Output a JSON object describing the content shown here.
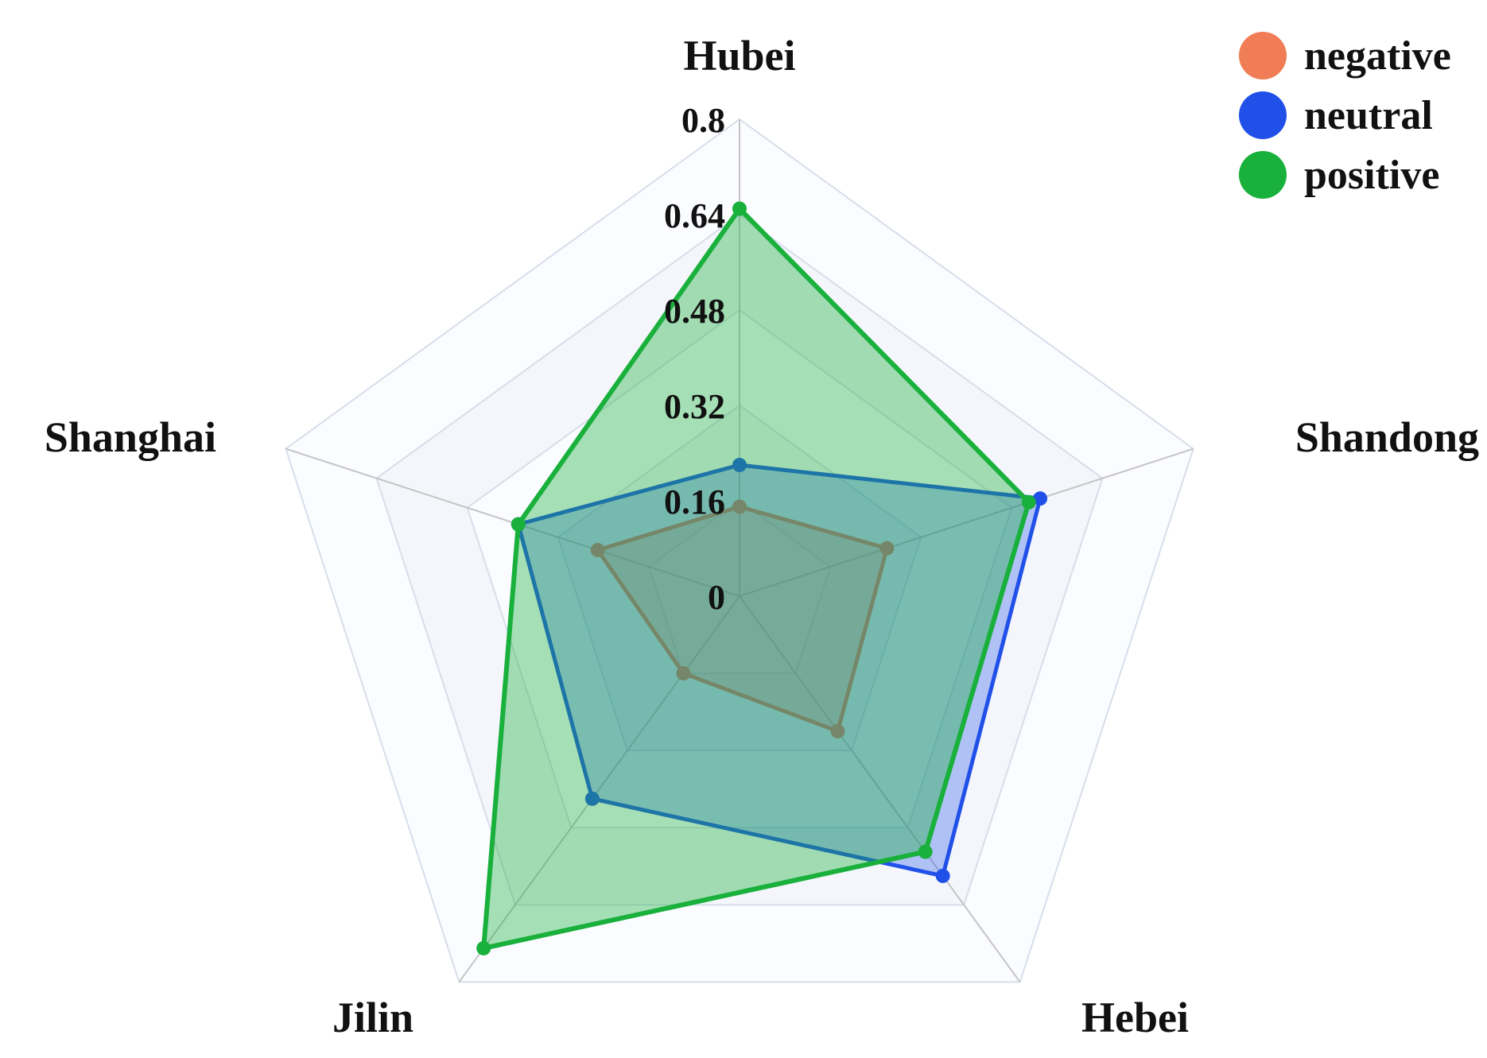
{
  "chart_data": {
    "type": "radar",
    "title": "",
    "categories": [
      "Hubei",
      "Shandong",
      "Hebei",
      "Jilin",
      "Shanghai"
    ],
    "ticks": [
      "0",
      "0.16",
      "0.32",
      "0.48",
      "0.64",
      "0.8"
    ],
    "range": [
      0,
      0.8
    ],
    "series": [
      {
        "name": "negative",
        "color": "#f07d55",
        "values": [
          0.15,
          0.26,
          0.28,
          0.16,
          0.25
        ]
      },
      {
        "name": "neutral",
        "color": "#2050e8",
        "values": [
          0.22,
          0.53,
          0.58,
          0.42,
          0.39
        ]
      },
      {
        "name": "positive",
        "color": "#19b03c",
        "values": [
          0.65,
          0.51,
          0.53,
          0.73,
          0.39
        ]
      }
    ],
    "legend_position": "top-right"
  }
}
